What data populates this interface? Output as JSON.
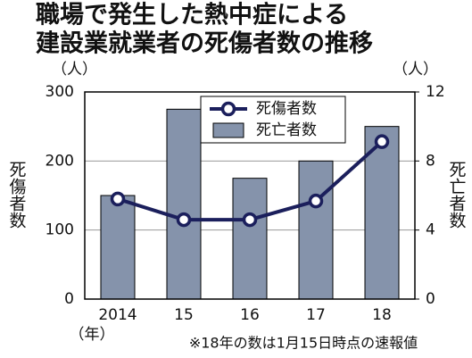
{
  "chart_data": {
    "type": "combo",
    "title": [
      "職場で発生した熱中症による",
      "建設業就業者の死傷者数の推移"
    ],
    "categories": [
      "2014",
      "15",
      "16",
      "17",
      "18"
    ],
    "xunit": "（年）",
    "ylabel": "死傷者数",
    "yunit": "（人）",
    "y2label": "死亡者数",
    "y2unit": "（人）",
    "ylim": [
      0,
      300
    ],
    "yticks": [
      0,
      100,
      200,
      300
    ],
    "y2lim": [
      0,
      12
    ],
    "y2ticks": [
      0,
      4,
      8,
      12
    ],
    "grid": true,
    "series": [
      {
        "name": "死傷者数",
        "type": "line",
        "color": "#1b1f5c",
        "values": [
          145,
          115,
          115,
          142,
          228
        ]
      },
      {
        "name": "死亡者数",
        "type": "bar",
        "axis": "y2",
        "color": "#8593ab",
        "values": [
          6,
          11,
          7,
          8,
          10
        ]
      }
    ],
    "note": "※18年の数は1月15日時点の速報値"
  }
}
